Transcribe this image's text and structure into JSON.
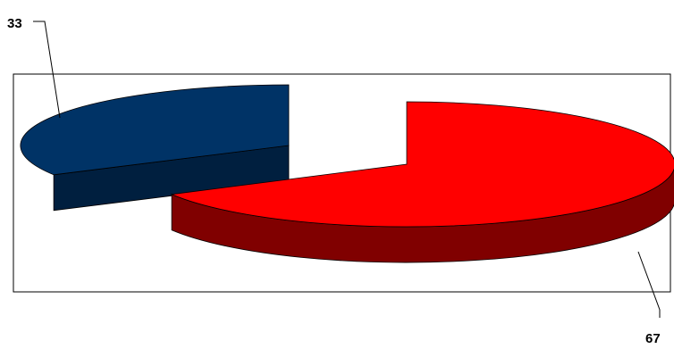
{
  "chart_data": {
    "type": "pie",
    "style": "3d-exploded",
    "title": "",
    "legend": "none",
    "series": [
      {
        "label": "33",
        "value": 33,
        "top_color": "#003366",
        "side_color": "#001F3F"
      },
      {
        "label": "67",
        "value": 67,
        "top_color": "#FF0000",
        "side_color": "#800000"
      }
    ]
  }
}
